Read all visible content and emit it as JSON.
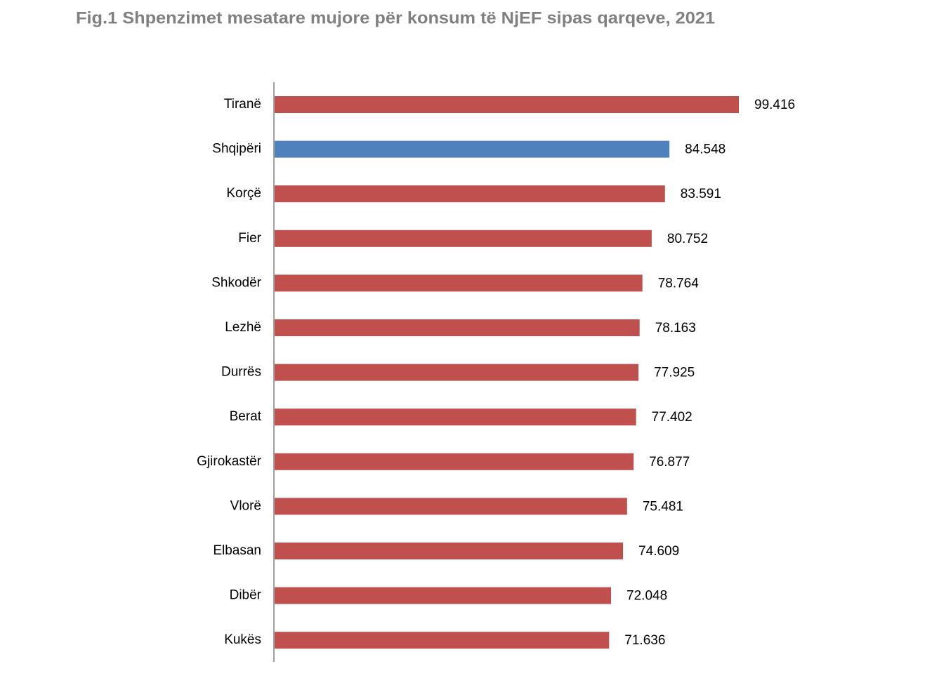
{
  "chart_data": {
    "type": "bar",
    "orientation": "horizontal",
    "title": "Fig.1 Shpenzimet mesatare mujore për konsum të NjEF sipas qarqeve, 2021",
    "categories": [
      "Tiranë",
      "Shqipëri",
      "Korçë",
      "Fier",
      "Shkodër",
      "Lezhë",
      "Durrës",
      "Berat",
      "Gjirokastër",
      "Vlorë",
      "Elbasan",
      "Dibër",
      "Kukës"
    ],
    "values": [
      99416,
      84548,
      83591,
      80752,
      78764,
      78163,
      77925,
      77402,
      76877,
      75481,
      74609,
      72048,
      71636
    ],
    "value_labels": [
      "99.416",
      "84.548",
      "83.591",
      "80.752",
      "78.764",
      "78.163",
      "77.925",
      "77.402",
      "76.877",
      "75.481",
      "74.609",
      "72.048",
      "71.636"
    ],
    "colors": [
      "#c0504d",
      "#4f81bd",
      "#c0504d",
      "#c0504d",
      "#c0504d",
      "#c0504d",
      "#c0504d",
      "#c0504d",
      "#c0504d",
      "#c0504d",
      "#c0504d",
      "#c0504d",
      "#c0504d"
    ]
  }
}
